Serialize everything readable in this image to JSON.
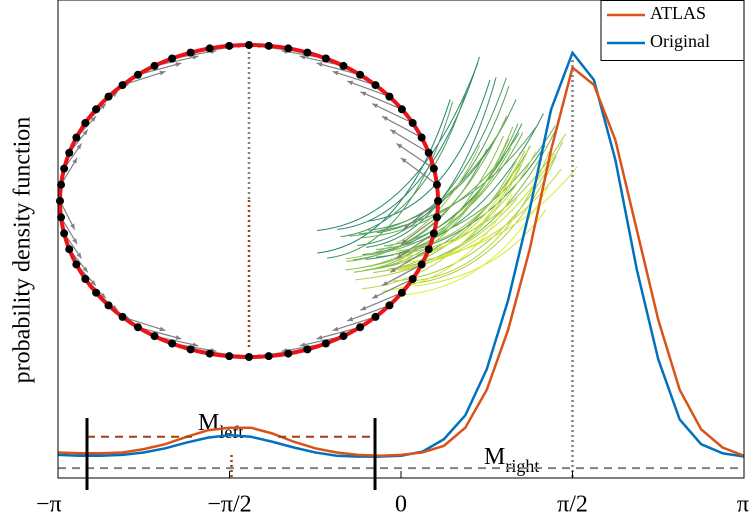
{
  "chart_data": {
    "type": "line",
    "y_label": "probability density function",
    "x": [
      -3.1416,
      -2.9452,
      -2.7489,
      -2.5525,
      -2.3562,
      -2.1598,
      -1.9635,
      -1.7671,
      -1.5708,
      -1.3744,
      -1.1781,
      -0.9817,
      -0.7854,
      -0.589,
      -0.3927,
      -0.1963,
      0,
      0.1963,
      0.3927,
      0.589,
      0.7854,
      0.9817,
      1.1781,
      1.3744,
      1.5708,
      1.7671,
      1.9635,
      2.1598,
      2.3562,
      2.5525,
      2.7489,
      2.9452,
      3.1416
    ],
    "series": [
      {
        "name": "ATLAS",
        "color": "#d95319",
        "values": [
          0.31,
          0.3,
          0.3,
          0.31,
          0.35,
          0.41,
          0.5,
          0.58,
          0.61,
          0.61,
          0.54,
          0.44,
          0.36,
          0.31,
          0.28,
          0.27,
          0.28,
          0.31,
          0.39,
          0.61,
          1.07,
          1.8,
          2.77,
          3.98,
          4.98,
          4.77,
          4.1,
          3.01,
          1.92,
          1.07,
          0.59,
          0.37,
          0.27
        ]
      },
      {
        "name": "Original",
        "color": "#0072bd",
        "values": [
          0.28,
          0.27,
          0.27,
          0.28,
          0.31,
          0.36,
          0.43,
          0.49,
          0.52,
          0.5,
          0.44,
          0.37,
          0.31,
          0.27,
          0.26,
          0.26,
          0.27,
          0.32,
          0.47,
          0.76,
          1.32,
          2.16,
          3.25,
          4.47,
          5.16,
          4.83,
          3.86,
          2.53,
          1.44,
          0.71,
          0.41,
          0.3,
          0.26
        ]
      }
    ],
    "xlim": [
      -3.1416,
      3.1416
    ],
    "xticks": [
      {
        "value": -3.1416,
        "label": "−π"
      },
      {
        "value": -1.5708,
        "label": "−π/2"
      },
      {
        "value": 0,
        "label": "0"
      },
      {
        "value": 1.5708,
        "label": "π/2"
      },
      {
        "value": 3.1416,
        "label": "π"
      }
    ],
    "ylim": [
      0,
      5.8
    ],
    "legend": "top-right",
    "baseline": {
      "y": 0.12,
      "color": "#808080"
    },
    "annotations": [
      {
        "label": "M",
        "subscript": "left",
        "x": [
          -2.876,
          -0.238
        ],
        "y": 0.5,
        "color": "#a0401a"
      },
      {
        "label": "M",
        "subscript": "right",
        "x": [
          -0.238,
          3.1416
        ],
        "y": 0.11
      }
    ]
  }
}
